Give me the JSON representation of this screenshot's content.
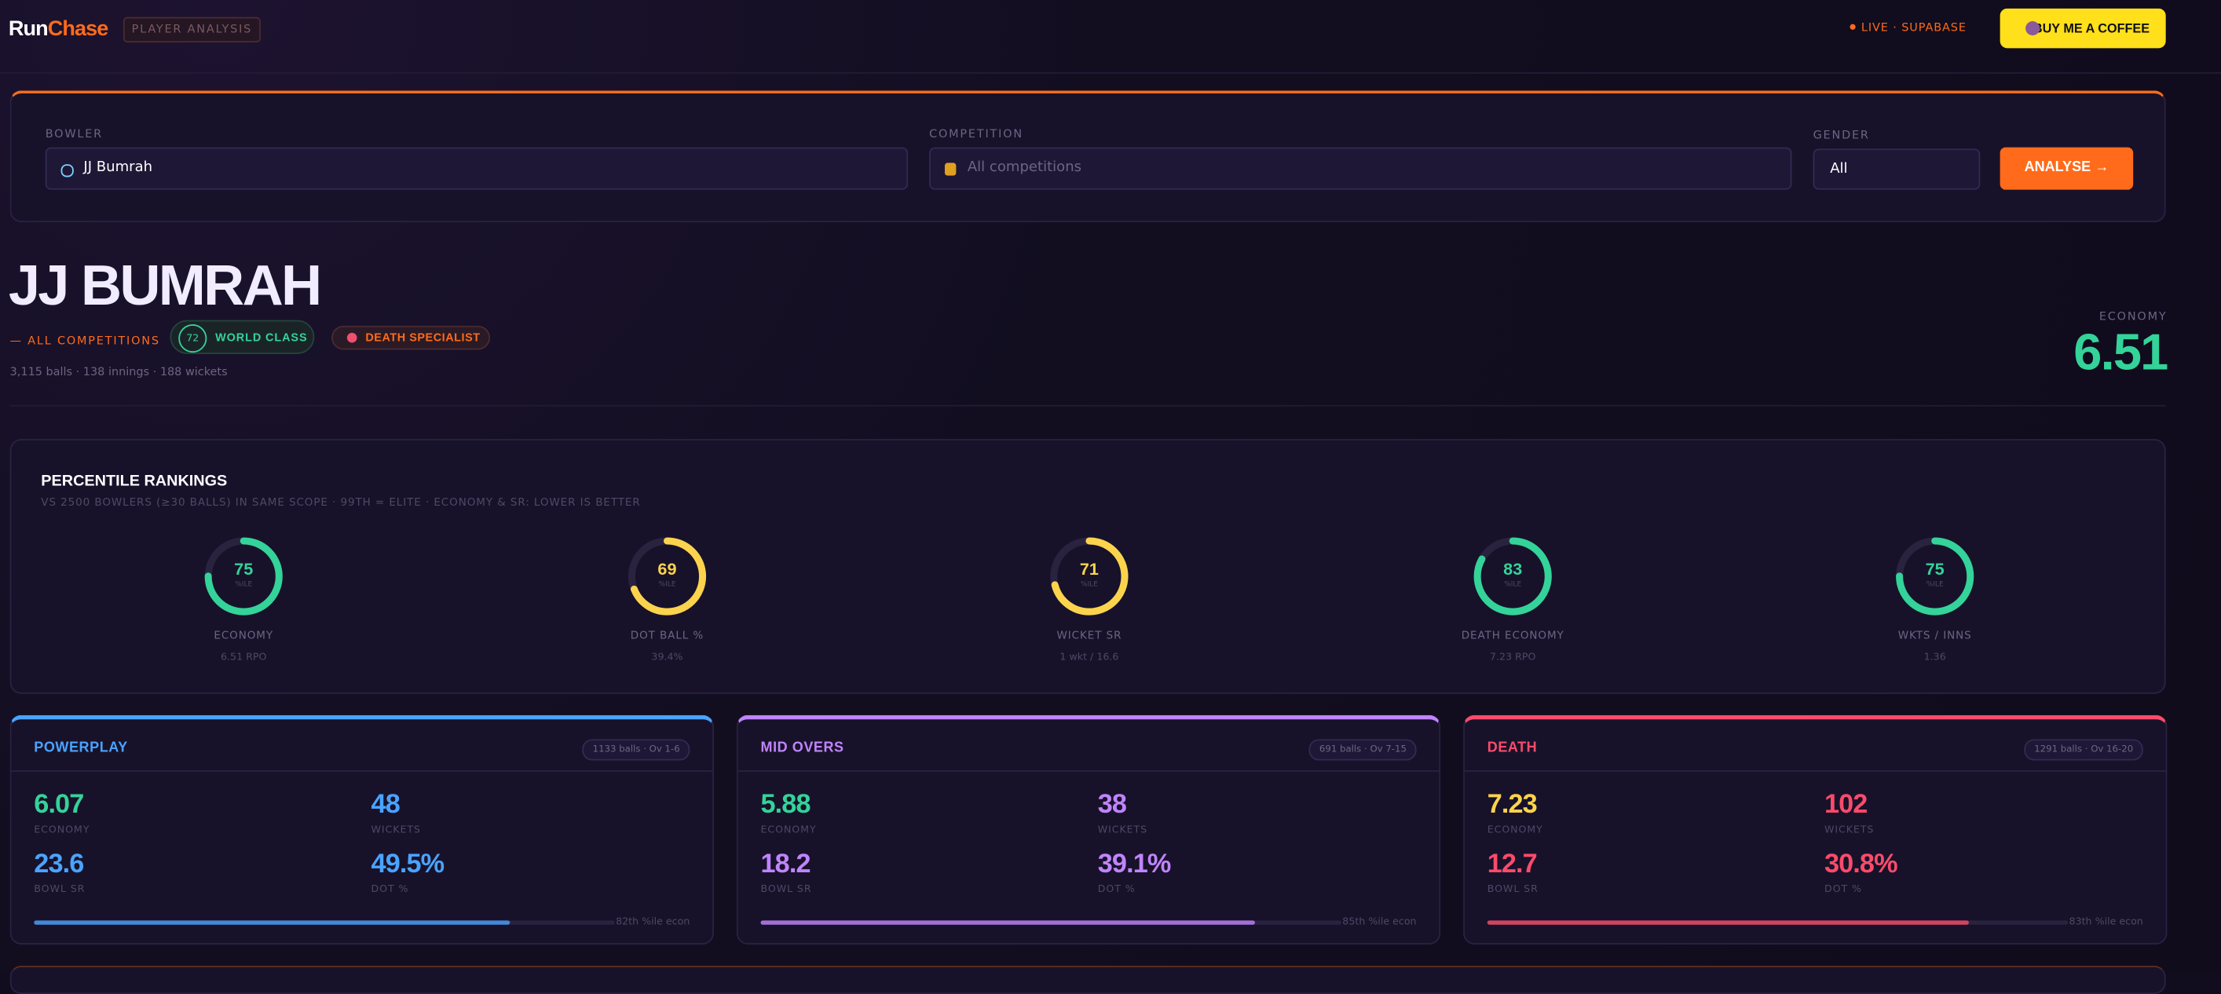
{
  "header": {
    "logo_a": "Run",
    "logo_b": "Chase",
    "tag": "PLAYER ANALYSIS",
    "status": "LIVE · SUPABASE",
    "coffee": "BUY ME A COFFEE"
  },
  "search": {
    "bowler_label": "BOWLER",
    "bowler_value": "JJ Bumrah",
    "competition_label": "COMPETITION",
    "competition_placeholder": "All competitions",
    "gender_label": "GENDER",
    "gender_value": "All",
    "button": "ANALYSE →"
  },
  "player": {
    "name": "JJ BUMRAH",
    "scope": "— ALL COMPETITIONS",
    "rating": 72,
    "rating_label": "WORLD CLASS",
    "role": "DEATH SPECIALIST",
    "summary": "3,115 balls · 138 innings · 188 wickets",
    "metric_label": "ECONOMY",
    "metric_value": 6.51
  },
  "percentiles": {
    "title": "PERCENTILE RANKINGS",
    "subtitle": "VS 2500 BOWLERS (≥30 BALLS) IN SAME SCOPE · 99TH = ELITE · ECONOMY & SR: LOWER IS BETTER",
    "unit": "%ILE",
    "items": [
      {
        "value": 75,
        "label": "ECONOMY",
        "sub": "6.51 RPO",
        "color": "#34d399"
      },
      {
        "value": 69,
        "label": "DOT BALL %",
        "sub": "39.4%",
        "color": "#fcd34d"
      },
      {
        "value": 71,
        "label": "WICKET SR",
        "sub": "1 wkt / 16.6",
        "color": "#fcd34d"
      },
      {
        "value": 83,
        "label": "DEATH ECONOMY",
        "sub": "7.23 RPO",
        "color": "#34d399"
      },
      {
        "value": 75,
        "label": "WKTS / INNS",
        "sub": "1.36",
        "color": "#34d399"
      }
    ]
  },
  "phases": [
    {
      "title": "POWERPLAY",
      "badge": "1133 balls · Ov 1-6",
      "color": "#4aa3ff",
      "stats": [
        {
          "value": 6.07,
          "label": "ECONOMY",
          "color": "#34d399"
        },
        {
          "value": 48,
          "label": "WICKETS",
          "color": "#4aa3ff"
        },
        {
          "value": 23.6,
          "label": "BOWL SR",
          "color": "#4aa3ff"
        },
        {
          "value": "49.5%",
          "label": "DOT %",
          "color": "#4aa3ff"
        }
      ],
      "bar": {
        "value": 82,
        "label": "82th %ile econ"
      }
    },
    {
      "title": "MID OVERS",
      "badge": "691 balls · Ov 7-15",
      "color": "#c084fc",
      "stats": [
        {
          "value": 5.88,
          "label": "ECONOMY",
          "color": "#34d399"
        },
        {
          "value": 38,
          "label": "WICKETS",
          "color": "#c084fc"
        },
        {
          "value": 18.2,
          "label": "BOWL SR",
          "color": "#c084fc"
        },
        {
          "value": "39.1%",
          "label": "DOT %",
          "color": "#c084fc"
        }
      ],
      "bar": {
        "value": 85,
        "label": "85th %ile econ"
      }
    },
    {
      "title": "DEATH",
      "badge": "1291 balls · Ov 16-20",
      "color": "#fb4b6b",
      "stats": [
        {
          "value": 7.23,
          "label": "ECONOMY",
          "color": "#fcd34d"
        },
        {
          "value": 102,
          "label": "WICKETS",
          "color": "#fb4b6b"
        },
        {
          "value": 12.7,
          "label": "BOWL SR",
          "color": "#fb4b6b"
        },
        {
          "value": "30.8%",
          "label": "DOT %",
          "color": "#fb4b6b"
        }
      ],
      "bar": {
        "value": 83,
        "label": "83th %ile econ"
      }
    }
  ]
}
